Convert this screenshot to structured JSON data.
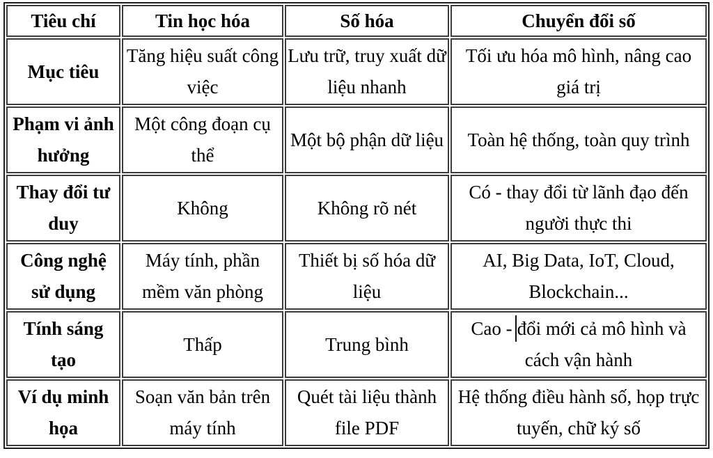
{
  "page": {
    "background_color": "#ffffff",
    "text_color": "#000000",
    "outer_border_color": "#1f1f1f",
    "cell_border_color": "#3d3d3d"
  },
  "table": {
    "headers": [
      "Tiêu chí",
      "Tin học hóa",
      "Số hóa",
      "Chuyển đổi số"
    ],
    "rows": [
      {
        "cells": [
          "Mục tiêu",
          "Tăng hiệu suất công việc",
          "Lưu trữ, truy xuất dữ liệu nhanh",
          "Tối ưu hóa mô hình, nâng cao giá trị"
        ]
      },
      {
        "cells": [
          "Phạm vi ảnh hưởng",
          "Một công đoạn cụ thể",
          "Một bộ phận dữ liệu",
          "Toàn hệ thống, toàn quy trình"
        ]
      },
      {
        "cells": [
          "Thay đổi tư duy",
          "Không",
          "Không rõ nét",
          "Có - thay đổi từ lãnh đạo đến người thực thi"
        ]
      },
      {
        "cells": [
          "Công nghệ sử dụng",
          "Máy tính, phần mềm văn phòng",
          "Thiết bị số hóa dữ liệu",
          "AI, Big Data, IoT, Cloud, Blockchain..."
        ]
      },
      {
        "cells": [
          "Tính sáng tạo",
          "Thấp",
          "Trung bình",
          {
            "before_caret": "Cao -",
            "after_caret": "đổi mới cả mô hình và cách vận hành"
          }
        ]
      },
      {
        "cells": [
          "Ví dụ minh họa",
          "Soạn văn bản trên máy tính",
          "Quét tài liệu thành file PDF",
          "Hệ thống điều hành số, họp trực tuyến, chữ ký số"
        ]
      }
    ]
  }
}
